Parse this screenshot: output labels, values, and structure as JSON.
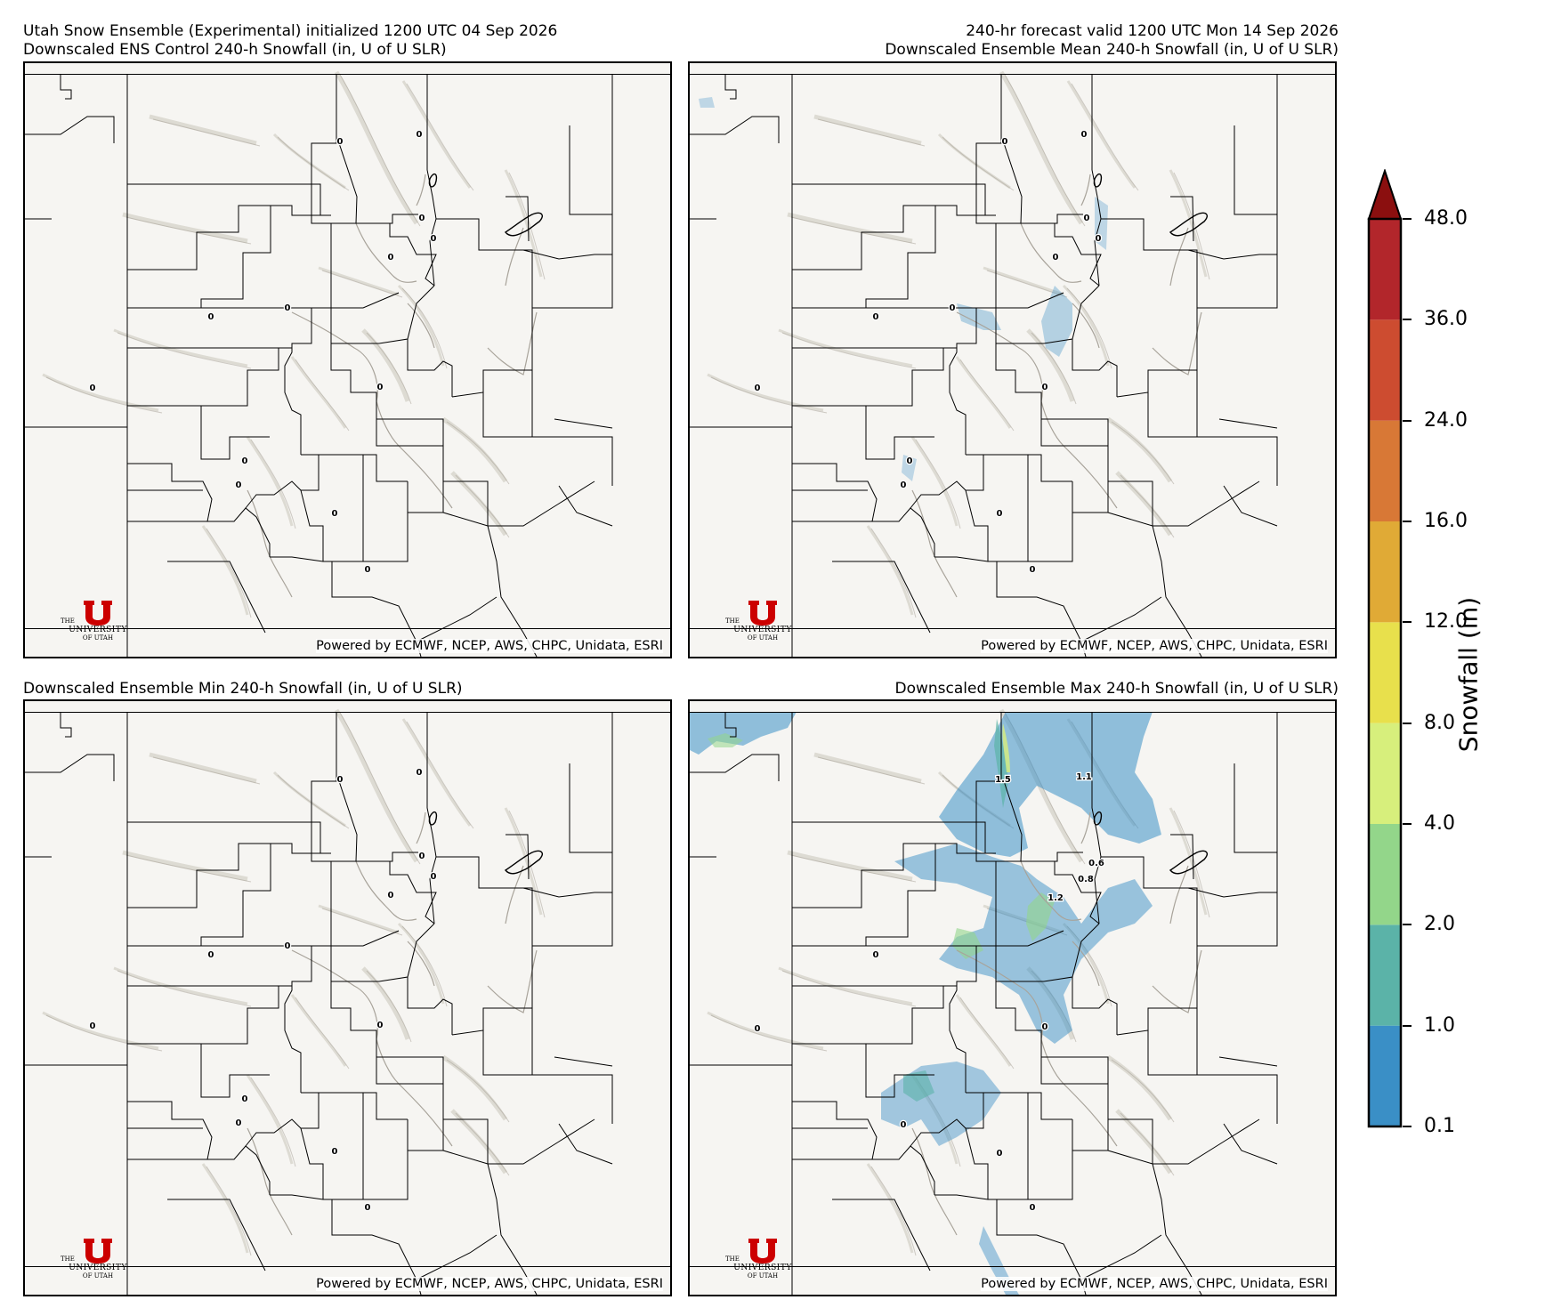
{
  "header": {
    "top_left_line1": "Utah Snow Ensemble (Experimental) initialized 1200 UTC 04 Sep 2026",
    "top_left_line2": "Downscaled ENS Control 240-h Snowfall (in, U of U SLR)",
    "top_right_line1": "240-hr forecast valid 1200 UTC Mon 14 Sep 2026",
    "top_right_line2": "Downscaled Ensemble Mean 240-h Snowfall (in, U of U SLR)",
    "bottom_left_title": "Downscaled Ensemble Min 240-h Snowfall (in, U of U SLR)",
    "bottom_right_title": "Downscaled Ensemble Max 240-h Snowfall (in, U of U SLR)"
  },
  "panels": {
    "control": {
      "credit": "Powered by ECMWF, NCEP, AWS, CHPC, Unidata, ESRI",
      "logo_the": "THE",
      "logo_university": "UNIVERSITY",
      "logo_of_utah": "OF UTAH",
      "point_labels": [
        "0",
        "0",
        "0",
        "0",
        "0",
        "0",
        "0",
        "0",
        "0",
        "0",
        "0",
        "0",
        "0",
        "0"
      ]
    },
    "mean": {
      "credit": "Powered by ECMWF, NCEP, AWS, CHPC, Unidata, ESRI",
      "logo_the": "THE",
      "logo_university": "UNIVERSITY",
      "logo_of_utah": "OF UTAH",
      "point_labels": [
        "0",
        "0",
        "0",
        "0",
        "0",
        "0",
        "0",
        "0",
        "0",
        "0",
        "0",
        "0",
        "0",
        "0"
      ]
    },
    "min": {
      "credit": "Powered by ECMWF, NCEP, AWS, CHPC, Unidata, ESRI",
      "logo_the": "THE",
      "logo_university": "UNIVERSITY",
      "logo_of_utah": "OF UTAH",
      "point_labels": [
        "0",
        "0",
        "0",
        "0",
        "0",
        "0",
        "0",
        "0",
        "0",
        "0",
        "0",
        "0",
        "0",
        "0"
      ]
    },
    "max": {
      "credit": "Powered by ECMWF, NCEP, AWS, CHPC, Unidata, ESRI",
      "logo_the": "THE",
      "logo_university": "UNIVERSITY",
      "logo_of_utah": "OF UTAH",
      "point_labels": [
        "1.5",
        "1.1",
        "0.6",
        "0.8",
        "1.2",
        "0",
        "0",
        "0",
        "0",
        "0",
        "0"
      ]
    }
  },
  "colorbar": {
    "title": "Snowfall (in)",
    "ticks": [
      "0.1",
      "1.0",
      "2.0",
      "4.0",
      "8.0",
      "12.0",
      "16.0",
      "24.0",
      "36.0",
      "48.0"
    ],
    "colors": [
      "#3a8fc6",
      "#5bb3a8",
      "#93d68a",
      "#d7ef7c",
      "#e8e04c",
      "#e0aa36",
      "#d87836",
      "#cd4c30",
      "#b2262b"
    ],
    "extend_color": "#8b0f0f",
    "extend": "max"
  }
}
